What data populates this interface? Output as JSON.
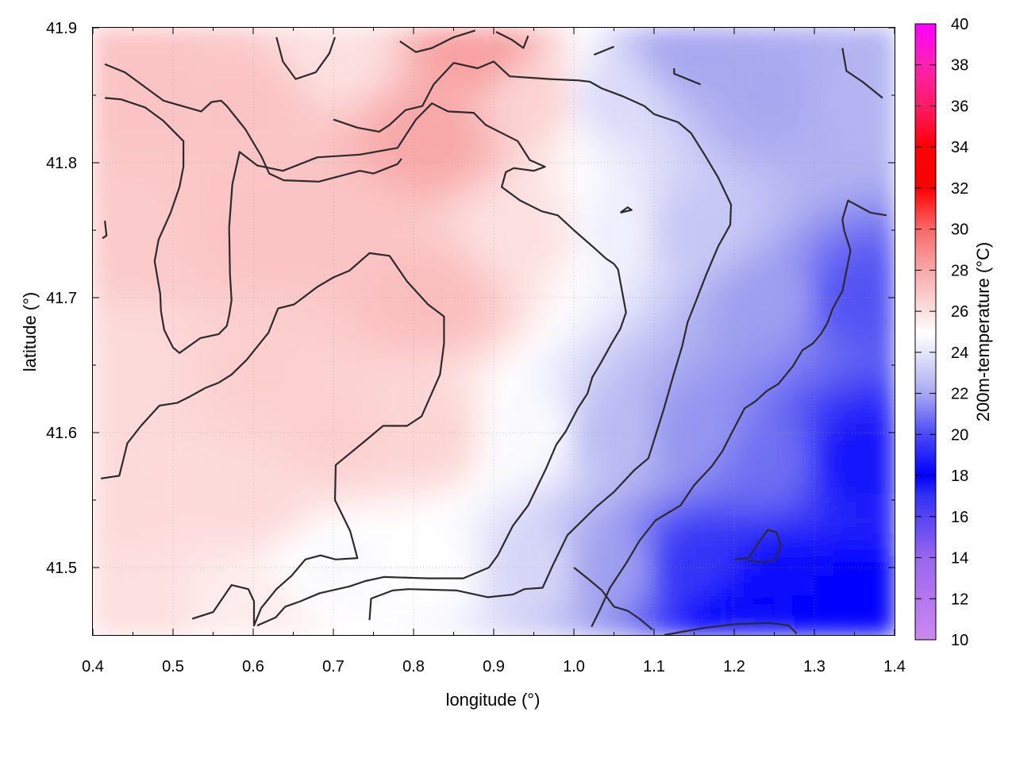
{
  "chart_data": {
    "type": "heatmap",
    "title": "",
    "xlabel": "longitude (°)",
    "ylabel": "latitude (°)",
    "colorbar_label": "200m-temperature (°C)",
    "xlim": [
      0.4,
      1.4
    ],
    "ylim": [
      41.45,
      41.9
    ],
    "xticks": [
      "0.4",
      "0.5",
      "0.6",
      "0.7",
      "0.8",
      "0.9",
      "1.0",
      "1.1",
      "1.2",
      "1.3",
      "1.4"
    ],
    "yticks": [
      "41.5",
      "41.6",
      "41.7",
      "41.8",
      "41.9"
    ],
    "colorbar_ticks": [
      "10",
      "12",
      "14",
      "16",
      "18",
      "20",
      "22",
      "24",
      "26",
      "28",
      "30",
      "32",
      "34",
      "36",
      "38",
      "40"
    ],
    "colorbar_range": [
      10,
      40
    ],
    "grid": true,
    "colorscale": [
      {
        "value": 10,
        "color": "#cc88ee"
      },
      {
        "value": 14,
        "color": "#9966ee"
      },
      {
        "value": 17,
        "color": "#3333f5"
      },
      {
        "value": 18,
        "color": "#0000ff"
      },
      {
        "value": 20,
        "color": "#4a4af5"
      },
      {
        "value": 22,
        "color": "#a8a8f0"
      },
      {
        "value": 24,
        "color": "#e6e6fb"
      },
      {
        "value": 25,
        "color": "#ffffff"
      },
      {
        "value": 26,
        "color": "#fde0e0"
      },
      {
        "value": 28,
        "color": "#f8a8a8"
      },
      {
        "value": 30,
        "color": "#f86868"
      },
      {
        "value": 32,
        "color": "#ff0000"
      },
      {
        "value": 34,
        "color": "#ff0000"
      },
      {
        "value": 36,
        "color": "#ff1a66"
      },
      {
        "value": 38,
        "color": "#ff22b0"
      },
      {
        "value": 40,
        "color": "#ff00ff"
      }
    ],
    "temperature_anchors": [
      {
        "x": 0.45,
        "y": 41.85,
        "t": 27.0
      },
      {
        "x": 0.45,
        "y": 41.75,
        "t": 26.8
      },
      {
        "x": 0.45,
        "y": 41.65,
        "t": 26.2
      },
      {
        "x": 0.45,
        "y": 41.55,
        "t": 26.2
      },
      {
        "x": 0.45,
        "y": 41.47,
        "t": 26.0
      },
      {
        "x": 0.6,
        "y": 41.85,
        "t": 27.0
      },
      {
        "x": 0.6,
        "y": 41.75,
        "t": 27.0
      },
      {
        "x": 0.6,
        "y": 41.65,
        "t": 26.6
      },
      {
        "x": 0.6,
        "y": 41.55,
        "t": 26.2
      },
      {
        "x": 0.6,
        "y": 41.47,
        "t": 25.6
      },
      {
        "x": 0.7,
        "y": 41.88,
        "t": 26.0
      },
      {
        "x": 0.7,
        "y": 41.75,
        "t": 27.0
      },
      {
        "x": 0.7,
        "y": 41.6,
        "t": 26.6
      },
      {
        "x": 0.7,
        "y": 41.5,
        "t": 24.8
      },
      {
        "x": 0.82,
        "y": 41.82,
        "t": 28.0
      },
      {
        "x": 0.82,
        "y": 41.7,
        "t": 27.2
      },
      {
        "x": 0.82,
        "y": 41.6,
        "t": 26.4
      },
      {
        "x": 0.82,
        "y": 41.5,
        "t": 25.0
      },
      {
        "x": 0.88,
        "y": 41.88,
        "t": 28.2
      },
      {
        "x": 0.95,
        "y": 41.85,
        "t": 26.5
      },
      {
        "x": 0.95,
        "y": 41.75,
        "t": 26.0
      },
      {
        "x": 0.95,
        "y": 41.6,
        "t": 24.8
      },
      {
        "x": 0.95,
        "y": 41.5,
        "t": 23.5
      },
      {
        "x": 1.05,
        "y": 41.85,
        "t": 23.6
      },
      {
        "x": 1.05,
        "y": 41.75,
        "t": 24.4
      },
      {
        "x": 1.05,
        "y": 41.6,
        "t": 22.6
      },
      {
        "x": 1.05,
        "y": 41.5,
        "t": 21.8
      },
      {
        "x": 1.15,
        "y": 41.88,
        "t": 22.0
      },
      {
        "x": 1.15,
        "y": 41.75,
        "t": 23.0
      },
      {
        "x": 1.15,
        "y": 41.6,
        "t": 21.6
      },
      {
        "x": 1.15,
        "y": 41.5,
        "t": 19.4
      },
      {
        "x": 1.25,
        "y": 41.85,
        "t": 22.0
      },
      {
        "x": 1.25,
        "y": 41.7,
        "t": 21.8
      },
      {
        "x": 1.25,
        "y": 41.58,
        "t": 20.8
      },
      {
        "x": 1.25,
        "y": 41.48,
        "t": 18.2
      },
      {
        "x": 1.35,
        "y": 41.85,
        "t": 22.4
      },
      {
        "x": 1.35,
        "y": 41.7,
        "t": 20.2
      },
      {
        "x": 1.35,
        "y": 41.58,
        "t": 18.6
      },
      {
        "x": 1.35,
        "y": 41.47,
        "t": 18.0
      },
      {
        "x": 1.22,
        "y": 41.46,
        "t": 17.6
      }
    ],
    "contours": [
      [
        [
          0.415,
          41.873
        ],
        [
          0.44,
          41.867
        ],
        [
          0.463,
          41.857
        ],
        [
          0.488,
          41.846
        ],
        [
          0.535,
          41.838
        ],
        [
          0.548,
          41.845
        ],
        [
          0.56,
          41.846
        ],
        [
          0.567,
          41.842
        ],
        [
          0.59,
          41.825
        ],
        [
          0.61,
          41.805
        ],
        [
          0.62,
          41.792
        ],
        [
          0.638,
          41.787
        ],
        [
          0.682,
          41.786
        ],
        [
          0.733,
          41.794
        ],
        [
          0.75,
          41.792
        ],
        [
          0.78,
          41.799
        ],
        [
          0.785,
          41.803
        ]
      ],
      [
        [
          0.415,
          41.848
        ],
        [
          0.435,
          41.847
        ],
        [
          0.465,
          41.841
        ],
        [
          0.488,
          41.831
        ],
        [
          0.513,
          41.816
        ],
        [
          0.513,
          41.797
        ],
        [
          0.508,
          41.782
        ],
        [
          0.497,
          41.763
        ],
        [
          0.482,
          41.743
        ],
        [
          0.477,
          41.727
        ],
        [
          0.484,
          41.703
        ],
        [
          0.485,
          41.69
        ],
        [
          0.489,
          41.676
        ],
        [
          0.5,
          41.663
        ],
        [
          0.508,
          41.659
        ],
        [
          0.534,
          41.67
        ],
        [
          0.557,
          41.673
        ],
        [
          0.567,
          41.679
        ],
        [
          0.57,
          41.687
        ],
        [
          0.573,
          41.698
        ],
        [
          0.571,
          41.718
        ],
        [
          0.57,
          41.752
        ],
        [
          0.574,
          41.784
        ],
        [
          0.583,
          41.808
        ],
        [
          0.605,
          41.798
        ],
        [
          0.637,
          41.794
        ],
        [
          0.68,
          41.804
        ],
        [
          0.733,
          41.806
        ],
        [
          0.78,
          41.811
        ],
        [
          0.803,
          41.832
        ],
        [
          0.823,
          41.844
        ],
        [
          0.843,
          41.838
        ],
        [
          0.875,
          41.837
        ],
        [
          0.89,
          41.828
        ],
        [
          0.93,
          41.816
        ],
        [
          0.945,
          41.802
        ],
        [
          0.964,
          41.797
        ],
        [
          0.95,
          41.794
        ],
        [
          0.925,
          41.796
        ],
        [
          0.915,
          41.793
        ],
        [
          0.91,
          41.782
        ],
        [
          0.933,
          41.772
        ],
        [
          0.96,
          41.764
        ],
        [
          0.98,
          41.761
        ],
        [
          1.0,
          41.75
        ],
        [
          1.025,
          41.737
        ],
        [
          1.04,
          41.729
        ],
        [
          1.05,
          41.725
        ],
        [
          1.055,
          41.721
        ],
        [
          1.065,
          41.689
        ],
        [
          1.058,
          41.677
        ],
        [
          1.047,
          41.666
        ],
        [
          1.033,
          41.651
        ],
        [
          1.023,
          41.641
        ],
        [
          1.017,
          41.629
        ],
        [
          1.005,
          41.618
        ],
        [
          0.99,
          41.601
        ],
        [
          0.978,
          41.591
        ],
        [
          0.965,
          41.573
        ],
        [
          0.943,
          41.546
        ],
        [
          0.924,
          41.531
        ],
        [
          0.905,
          41.509
        ],
        [
          0.894,
          41.5
        ],
        [
          0.862,
          41.492
        ],
        [
          0.818,
          41.492
        ],
        [
          0.763,
          41.493
        ],
        [
          0.74,
          41.49
        ],
        [
          0.72,
          41.486
        ],
        [
          0.683,
          41.481
        ],
        [
          0.659,
          41.475
        ],
        [
          0.64,
          41.471
        ],
        [
          0.628,
          41.463
        ],
        [
          0.605,
          41.457
        ]
      ],
      [
        [
          0.41,
          41.566
        ],
        [
          0.433,
          41.568
        ],
        [
          0.443,
          41.592
        ],
        [
          0.46,
          41.605
        ],
        [
          0.483,
          41.62
        ],
        [
          0.505,
          41.622
        ],
        [
          0.522,
          41.627
        ],
        [
          0.54,
          41.633
        ],
        [
          0.557,
          41.637
        ],
        [
          0.573,
          41.643
        ],
        [
          0.592,
          41.654
        ],
        [
          0.619,
          41.674
        ],
        [
          0.631,
          41.692
        ],
        [
          0.651,
          41.695
        ],
        [
          0.68,
          41.708
        ],
        [
          0.7,
          41.715
        ],
        [
          0.72,
          41.72
        ],
        [
          0.745,
          41.733
        ],
        [
          0.77,
          41.731
        ],
        [
          0.792,
          41.712
        ],
        [
          0.818,
          41.695
        ],
        [
          0.838,
          41.686
        ],
        [
          0.838,
          41.666
        ],
        [
          0.833,
          41.643
        ],
        [
          0.81,
          41.612
        ],
        [
          0.792,
          41.605
        ],
        [
          0.762,
          41.605
        ],
        [
          0.742,
          41.595
        ],
        [
          0.703,
          41.576
        ],
        [
          0.702,
          41.55
        ],
        [
          0.721,
          41.527
        ],
        [
          0.73,
          41.507
        ],
        [
          0.703,
          41.506
        ],
        [
          0.684,
          41.509
        ],
        [
          0.665,
          41.506
        ],
        [
          0.648,
          41.494
        ],
        [
          0.629,
          41.484
        ],
        [
          0.61,
          41.47
        ],
        [
          0.601,
          41.457
        ],
        [
          0.601,
          41.475
        ],
        [
          0.594,
          41.484
        ],
        [
          0.573,
          41.487
        ],
        [
          0.55,
          41.467
        ],
        [
          0.524,
          41.462
        ]
      ],
      [
        [
          0.629,
          41.893
        ],
        [
          0.637,
          41.875
        ],
        [
          0.653,
          41.862
        ],
        [
          0.678,
          41.867
        ],
        [
          0.695,
          41.881
        ],
        [
          0.702,
          41.893
        ]
      ],
      [
        [
          0.783,
          41.89
        ],
        [
          0.803,
          41.882
        ],
        [
          0.823,
          41.885
        ],
        [
          0.85,
          41.893
        ],
        [
          0.877,
          41.898
        ]
      ],
      [
        [
          0.903,
          41.897
        ],
        [
          0.923,
          41.891
        ],
        [
          0.937,
          41.885
        ],
        [
          0.943,
          41.894
        ]
      ],
      [
        [
          1.025,
          41.88
        ],
        [
          1.05,
          41.886
        ]
      ],
      [
        [
          1.058,
          41.763
        ],
        [
          1.072,
          41.765
        ],
        [
          1.067,
          41.767
        ],
        [
          1.058,
          41.763
        ]
      ],
      [
        [
          1.125,
          41.87
        ],
        [
          1.125,
          41.866
        ],
        [
          1.158,
          41.858
        ]
      ],
      [
        [
          0.415,
          41.757
        ],
        [
          0.417,
          41.746
        ],
        [
          0.412,
          41.744
        ]
      ],
      [
        [
          1.0,
          41.5
        ],
        [
          1.017,
          41.492
        ],
        [
          1.035,
          41.483
        ],
        [
          1.05,
          41.471
        ],
        [
          1.067,
          41.468
        ],
        [
          1.082,
          41.462
        ],
        [
          1.098,
          41.454
        ]
      ],
      [
        [
          0.745,
          41.461
        ],
        [
          0.747,
          41.477
        ],
        [
          0.774,
          41.483
        ],
        [
          0.794,
          41.484
        ],
        [
          0.854,
          41.483
        ],
        [
          0.893,
          41.478
        ],
        [
          0.924,
          41.48
        ],
        [
          0.938,
          41.484
        ],
        [
          0.961,
          41.485
        ],
        [
          0.974,
          41.502
        ],
        [
          0.992,
          41.524
        ],
        [
          1.028,
          41.545
        ],
        [
          1.05,
          41.556
        ],
        [
          1.075,
          41.572
        ],
        [
          1.093,
          41.581
        ],
        [
          1.103,
          41.6
        ],
        [
          1.112,
          41.617
        ],
        [
          1.124,
          41.642
        ],
        [
          1.135,
          41.664
        ],
        [
          1.142,
          41.682
        ],
        [
          1.15,
          41.694
        ],
        [
          1.165,
          41.717
        ],
        [
          1.18,
          41.738
        ],
        [
          1.195,
          41.754
        ],
        [
          1.196,
          41.769
        ],
        [
          1.18,
          41.789
        ],
        [
          1.163,
          41.806
        ],
        [
          1.146,
          41.822
        ],
        [
          1.13,
          41.83
        ],
        [
          1.1,
          41.836
        ],
        [
          1.088,
          41.842
        ],
        [
          1.062,
          41.849
        ],
        [
          1.035,
          41.855
        ],
        [
          1.02,
          41.86
        ],
        [
          1.006,
          41.861
        ],
        [
          0.97,
          41.862
        ],
        [
          0.92,
          41.864
        ],
        [
          0.9,
          41.875
        ],
        [
          0.88,
          41.87
        ],
        [
          0.85,
          41.874
        ],
        [
          0.825,
          41.858
        ],
        [
          0.811,
          41.842
        ],
        [
          0.79,
          41.839
        ],
        [
          0.77,
          41.828
        ],
        [
          0.757,
          41.823
        ],
        [
          0.73,
          41.826
        ],
        [
          0.7,
          41.832
        ]
      ],
      [
        [
          1.022,
          41.456
        ],
        [
          1.032,
          41.468
        ],
        [
          1.045,
          41.485
        ],
        [
          1.065,
          41.503
        ],
        [
          1.082,
          41.52
        ],
        [
          1.102,
          41.535
        ],
        [
          1.133,
          41.546
        ],
        [
          1.15,
          41.561
        ],
        [
          1.172,
          41.575
        ],
        [
          1.185,
          41.586
        ],
        [
          1.198,
          41.601
        ],
        [
          1.213,
          41.618
        ],
        [
          1.226,
          41.623
        ],
        [
          1.241,
          41.631
        ],
        [
          1.255,
          41.636
        ],
        [
          1.273,
          41.649
        ],
        [
          1.285,
          41.661
        ],
        [
          1.298,
          41.666
        ],
        [
          1.308,
          41.673
        ],
        [
          1.316,
          41.681
        ],
        [
          1.323,
          41.692
        ],
        [
          1.335,
          41.705
        ],
        [
          1.345,
          41.735
        ],
        [
          1.337,
          41.75
        ],
        [
          1.335,
          41.758
        ],
        [
          1.342,
          41.772
        ],
        [
          1.37,
          41.763
        ],
        [
          1.39,
          41.761
        ]
      ],
      [
        [
          1.2,
          41.506
        ],
        [
          1.218,
          41.507
        ],
        [
          1.23,
          41.518
        ],
        [
          1.242,
          41.528
        ],
        [
          1.253,
          41.526
        ],
        [
          1.258,
          41.516
        ],
        [
          1.252,
          41.506
        ],
        [
          1.237,
          41.504
        ],
        [
          1.218,
          41.505
        ]
      ],
      [
        [
          1.113,
          41.45
        ],
        [
          1.16,
          41.455
        ],
        [
          1.2,
          41.458
        ],
        [
          1.245,
          41.459
        ],
        [
          1.268,
          41.457
        ],
        [
          1.278,
          41.451
        ]
      ],
      [
        [
          1.335,
          41.885
        ],
        [
          1.34,
          41.868
        ],
        [
          1.36,
          41.86
        ],
        [
          1.385,
          41.848
        ]
      ]
    ]
  }
}
